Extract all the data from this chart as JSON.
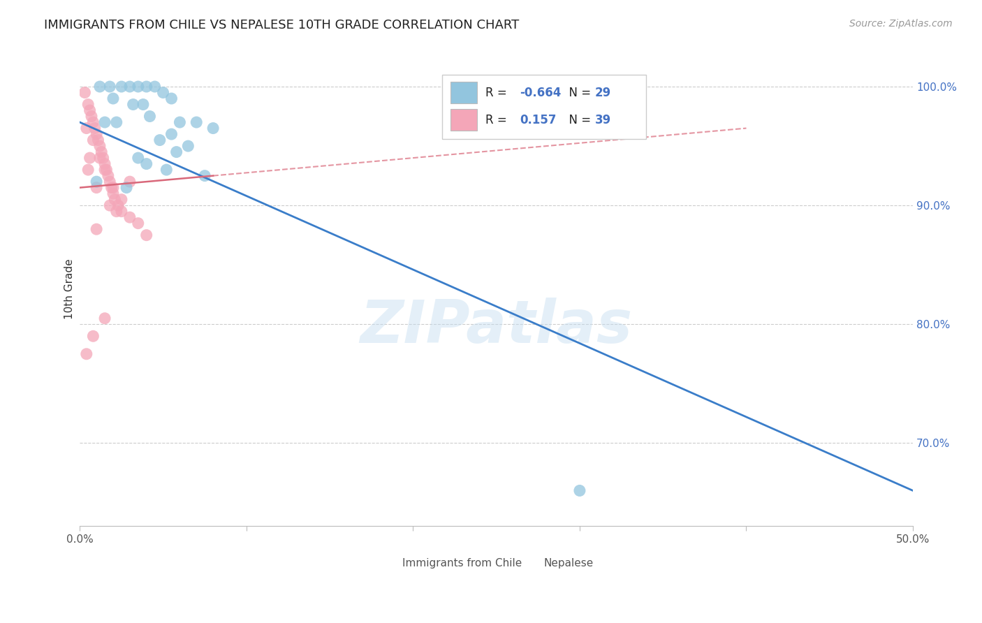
{
  "title": "IMMIGRANTS FROM CHILE VS NEPALESE 10TH GRADE CORRELATION CHART",
  "source": "Source: ZipAtlas.com",
  "ylabel": "10th Grade",
  "xlim": [
    0.0,
    50.0
  ],
  "ylim": [
    63.0,
    103.0
  ],
  "x_ticks": [
    0.0,
    10.0,
    20.0,
    30.0,
    40.0,
    50.0
  ],
  "x_tick_labels": [
    "0.0%",
    "",
    "",
    "",
    "",
    "50.0%"
  ],
  "y_ticks": [
    70.0,
    80.0,
    90.0,
    100.0
  ],
  "y_tick_labels": [
    "70.0%",
    "80.0%",
    "90.0%",
    "100.0%"
  ],
  "blue_R": -0.664,
  "blue_N": 29,
  "pink_R": 0.157,
  "pink_N": 39,
  "blue_color": "#92c5de",
  "pink_color": "#f4a6b8",
  "blue_line_color": "#3a7dc9",
  "pink_line_color": "#d9687a",
  "grid_color": "#cccccc",
  "watermark": "ZIPatlas",
  "blue_line_x0": 0.0,
  "blue_line_y0": 97.0,
  "blue_line_x1": 50.0,
  "blue_line_y1": 66.0,
  "pink_line_x0": 0.0,
  "pink_line_y0": 91.5,
  "pink_line_x1": 40.0,
  "pink_line_y1": 96.5,
  "pink_solid_end": 8.0,
  "pink_dashed_start": 8.0,
  "pink_dashed_end": 40.0,
  "blue_scatter_x": [
    1.2,
    1.8,
    2.5,
    3.0,
    3.5,
    4.0,
    4.5,
    5.0,
    5.5,
    2.0,
    3.2,
    3.8,
    4.2,
    1.5,
    2.2,
    6.0,
    7.0,
    8.0,
    5.5,
    4.8,
    6.5,
    5.8,
    3.5,
    4.0,
    5.2,
    7.5,
    30.0,
    1.0,
    2.8
  ],
  "blue_scatter_y": [
    100.0,
    100.0,
    100.0,
    100.0,
    100.0,
    100.0,
    100.0,
    99.5,
    99.0,
    99.0,
    98.5,
    98.5,
    97.5,
    97.0,
    97.0,
    97.0,
    97.0,
    96.5,
    96.0,
    95.5,
    95.0,
    94.5,
    94.0,
    93.5,
    93.0,
    92.5,
    66.0,
    92.0,
    91.5
  ],
  "pink_scatter_x": [
    0.3,
    0.5,
    0.6,
    0.7,
    0.8,
    0.9,
    1.0,
    1.1,
    1.2,
    1.3,
    1.4,
    1.5,
    1.6,
    1.7,
    1.8,
    1.9,
    2.0,
    2.1,
    2.3,
    2.5,
    3.0,
    3.5,
    0.4,
    0.8,
    1.2,
    1.5,
    2.0,
    2.5,
    3.0,
    0.5,
    1.0,
    1.8,
    2.2,
    0.6,
    1.0,
    4.0,
    1.5,
    0.8,
    0.4
  ],
  "pink_scatter_y": [
    99.5,
    98.5,
    98.0,
    97.5,
    97.0,
    96.5,
    96.0,
    95.5,
    95.0,
    94.5,
    94.0,
    93.5,
    93.0,
    92.5,
    92.0,
    91.5,
    91.0,
    90.5,
    90.0,
    89.5,
    89.0,
    88.5,
    96.5,
    95.5,
    94.0,
    93.0,
    91.5,
    90.5,
    92.0,
    93.0,
    91.5,
    90.0,
    89.5,
    94.0,
    88.0,
    87.5,
    80.5,
    79.0,
    77.5
  ]
}
